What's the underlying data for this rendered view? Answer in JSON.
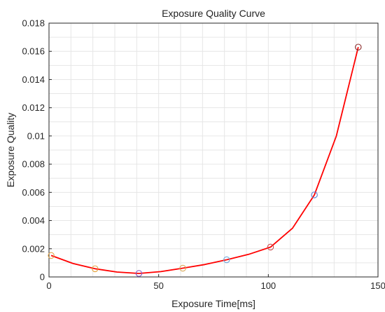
{
  "chart_data": {
    "type": "line",
    "title": "Exposure Quality Curve",
    "xlabel": "Exposure Time[ms]",
    "ylabel": "Exposure Quality",
    "xlim": [
      0,
      150
    ],
    "ylim": [
      0,
      0.018
    ],
    "x_ticks": [
      "0",
      "50",
      "100",
      "150"
    ],
    "y_ticks": [
      "0",
      "0.002",
      "0.004",
      "0.006",
      "0.008",
      "0.01",
      "0.012",
      "0.014",
      "0.016",
      "0.018"
    ],
    "grid": true,
    "series": [
      {
        "color": "#ff0000",
        "x": [
          1,
          11,
          21,
          31,
          41,
          51,
          61,
          71,
          81,
          91,
          101,
          111,
          121,
          131,
          141
        ],
        "y": [
          0.00152,
          0.00095,
          0.00058,
          0.00035,
          0.00025,
          0.00038,
          0.00062,
          0.00088,
          0.00122,
          0.0016,
          0.00212,
          0.00345,
          0.00582,
          0.01,
          0.0163
        ]
      }
    ],
    "markers": [
      {
        "x": 1,
        "y": 0.00152,
        "color": "#e3a64a"
      },
      {
        "x": 21,
        "y": 0.00058,
        "color": "#e6a23c"
      },
      {
        "x": 41,
        "y": 0.00025,
        "color": "#8a5cc6"
      },
      {
        "x": 61,
        "y": 0.00062,
        "color": "#d9a95a"
      },
      {
        "x": 81,
        "y": 0.00122,
        "color": "#6fa8dc"
      },
      {
        "x": 101,
        "y": 0.00212,
        "color": "#c94b4b"
      },
      {
        "x": 121,
        "y": 0.00582,
        "color": "#5b7fd6"
      },
      {
        "x": 141,
        "y": 0.0163,
        "color": "#8a2b2b"
      }
    ]
  }
}
